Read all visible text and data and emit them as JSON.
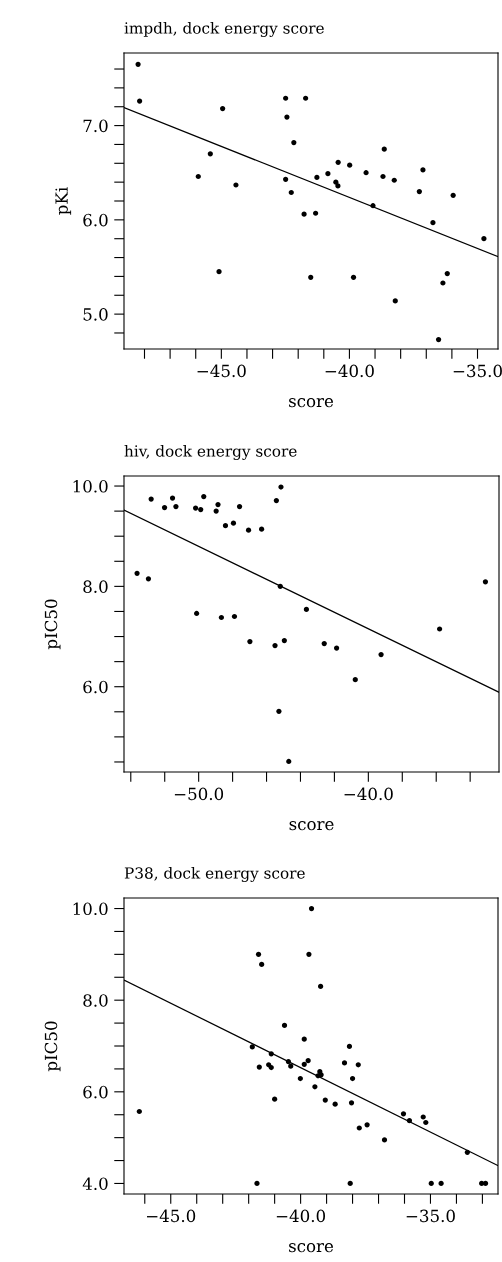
{
  "chart_data": [
    {
      "type": "scatter",
      "title": "impdh, dock energy score",
      "xlabel": "score",
      "ylabel": "pKi",
      "grid": false,
      "legend": false,
      "xlim": [
        -48.8,
        -34.2
      ],
      "ylim": [
        4.63,
        7.77
      ],
      "xticks": [
        {
          "value": -48,
          "label": null
        },
        {
          "value": -47,
          "label": null
        },
        {
          "value": -46,
          "label": null
        },
        {
          "value": -45,
          "label": "−45.0"
        },
        {
          "value": -44,
          "label": null
        },
        {
          "value": -43,
          "label": null
        },
        {
          "value": -42,
          "label": null
        },
        {
          "value": -41,
          "label": null
        },
        {
          "value": -40,
          "label": "−40.0"
        },
        {
          "value": -39,
          "label": null
        },
        {
          "value": -38,
          "label": null
        },
        {
          "value": -37,
          "label": null
        },
        {
          "value": -36,
          "label": null
        },
        {
          "value": -35,
          "label": "−35.0"
        }
      ],
      "yticks": [
        {
          "value": 4.8,
          "label": null
        },
        {
          "value": 5.0,
          "label": "5.0"
        },
        {
          "value": 5.2,
          "label": null
        },
        {
          "value": 5.4,
          "label": null
        },
        {
          "value": 5.6,
          "label": null
        },
        {
          "value": 5.8,
          "label": null
        },
        {
          "value": 6.0,
          "label": "6.0"
        },
        {
          "value": 6.2,
          "label": null
        },
        {
          "value": 6.4,
          "label": null
        },
        {
          "value": 6.6,
          "label": null
        },
        {
          "value": 6.8,
          "label": null
        },
        {
          "value": 7.0,
          "label": "7.0"
        },
        {
          "value": 7.2,
          "label": null
        },
        {
          "value": 7.4,
          "label": null
        },
        {
          "value": 7.6,
          "label": null
        }
      ],
      "series": [
        {
          "marker": "circle",
          "color": "#000000",
          "x": [
            -48.25,
            -48.19,
            -44.95,
            -45.43,
            -45.9,
            -44.43,
            -45.09,
            -42.49,
            -42.44,
            -42.17,
            -42.49,
            -42.27,
            -41.71,
            -41.77,
            -41.32,
            -41.27,
            -41.51,
            -40.84,
            -40.44,
            -40.53,
            -40.45,
            -39.99,
            -39.84,
            -39.35,
            -39.08,
            -38.64,
            -38.69,
            -38.25,
            -38.21,
            -37.27,
            -37.13,
            -36.74,
            -35.95,
            -36.52,
            -36.35,
            -36.18,
            -34.75
          ],
          "values": [
            7.65,
            7.26,
            7.18,
            6.7,
            6.46,
            6.37,
            5.45,
            7.29,
            7.09,
            6.82,
            6.43,
            6.29,
            7.29,
            6.06,
            6.07,
            6.45,
            5.39,
            6.49,
            6.61,
            6.4,
            6.36,
            6.58,
            5.39,
            6.5,
            6.15,
            6.75,
            6.46,
            6.42,
            5.14,
            6.3,
            6.53,
            5.97,
            6.26,
            4.73,
            5.33,
            5.43,
            5.8
          ]
        },
        {
          "type": "line",
          "color": "#000000",
          "line_style": "solid",
          "x": [
            -48.8,
            -34.2
          ],
          "values": [
            7.19,
            5.61
          ]
        }
      ]
    },
    {
      "type": "scatter",
      "title": "hiv, dock energy score",
      "xlabel": "score",
      "ylabel": "pIC50",
      "grid": false,
      "legend": false,
      "xlim": [
        -54.4,
        -32.3
      ],
      "ylim": [
        4.3,
        10.2
      ],
      "xticks": [
        {
          "value": -54,
          "label": null
        },
        {
          "value": -52,
          "label": null
        },
        {
          "value": -50,
          "label": "−50.0"
        },
        {
          "value": -48,
          "label": null
        },
        {
          "value": -46,
          "label": null
        },
        {
          "value": -44,
          "label": null
        },
        {
          "value": -42,
          "label": null
        },
        {
          "value": -40,
          "label": "−40.0"
        },
        {
          "value": -38,
          "label": null
        },
        {
          "value": -36,
          "label": null
        },
        {
          "value": -34,
          "label": null
        }
      ],
      "yticks": [
        {
          "value": 4.5,
          "label": null
        },
        {
          "value": 5.0,
          "label": null
        },
        {
          "value": 5.5,
          "label": null
        },
        {
          "value": 6.0,
          "label": "6.0"
        },
        {
          "value": 6.5,
          "label": null
        },
        {
          "value": 7.0,
          "label": null
        },
        {
          "value": 7.5,
          "label": null
        },
        {
          "value": 8.0,
          "label": "8.0"
        },
        {
          "value": 8.5,
          "label": null
        },
        {
          "value": 9.0,
          "label": null
        },
        {
          "value": 9.5,
          "label": null
        },
        {
          "value": 10.0,
          "label": "10.0"
        }
      ],
      "series": [
        {
          "marker": "circle",
          "color": "#000000",
          "x": [
            -53.63,
            -52.96,
            -52.8,
            -52.01,
            -51.54,
            -51.34,
            -50.18,
            -49.88,
            -49.7,
            -48.97,
            -48.86,
            -48.42,
            -47.95,
            -47.59,
            -47.06,
            -46.29,
            -45.42,
            -45.15,
            -50.12,
            -48.66,
            -47.89,
            -46.98,
            -45.5,
            -44.95,
            -45.19,
            -45.27,
            -44.69,
            -43.65,
            -42.6,
            -41.87,
            -40.77,
            -39.25,
            -35.8,
            -33.1
          ],
          "values": [
            8.26,
            8.15,
            9.74,
            9.57,
            9.76,
            9.59,
            9.56,
            9.53,
            9.79,
            9.5,
            9.63,
            9.21,
            9.26,
            9.59,
            9.12,
            9.14,
            9.71,
            9.98,
            7.46,
            7.38,
            7.4,
            6.9,
            6.82,
            6.92,
            8.0,
            5.51,
            4.51,
            7.54,
            6.86,
            6.77,
            6.14,
            6.64,
            7.15,
            8.09
          ]
        },
        {
          "type": "line",
          "color": "#000000",
          "line_style": "solid",
          "x": [
            -54.4,
            -32.3
          ],
          "values": [
            9.52,
            5.89
          ]
        }
      ]
    },
    {
      "type": "scatter",
      "title": "P38, dock energy score",
      "xlabel": "score",
      "ylabel": "pIC50",
      "grid": false,
      "legend": false,
      "xlim": [
        -46.8,
        -32.4
      ],
      "ylim": [
        3.77,
        10.23
      ],
      "xticks": [
        {
          "value": -46,
          "label": null
        },
        {
          "value": -45,
          "label": "−45.0"
        },
        {
          "value": -44,
          "label": null
        },
        {
          "value": -43,
          "label": null
        },
        {
          "value": -42,
          "label": null
        },
        {
          "value": -41,
          "label": null
        },
        {
          "value": -40,
          "label": "−40.0"
        },
        {
          "value": -39,
          "label": null
        },
        {
          "value": -38,
          "label": null
        },
        {
          "value": -37,
          "label": null
        },
        {
          "value": -36,
          "label": null
        },
        {
          "value": -35,
          "label": "−35.0"
        },
        {
          "value": -34,
          "label": null
        },
        {
          "value": -33,
          "label": null
        }
      ],
      "yticks": [
        {
          "value": 4.0,
          "label": "4.0"
        },
        {
          "value": 4.5,
          "label": null
        },
        {
          "value": 5.0,
          "label": null
        },
        {
          "value": 5.5,
          "label": null
        },
        {
          "value": 6.0,
          "label": "6.0"
        },
        {
          "value": 6.5,
          "label": null
        },
        {
          "value": 7.0,
          "label": null
        },
        {
          "value": 7.5,
          "label": null
        },
        {
          "value": 8.0,
          "label": "8.0"
        },
        {
          "value": 8.5,
          "label": null
        },
        {
          "value": 9.0,
          "label": null
        },
        {
          "value": 9.5,
          "label": null
        },
        {
          "value": 10.0,
          "label": "10.0"
        }
      ],
      "series": [
        {
          "marker": "circle",
          "color": "#000000",
          "x": [
            -46.21,
            -41.68,
            -41.62,
            -41.5,
            -41.86,
            -41.59,
            -41.23,
            -41.13,
            -41.13,
            -41.0,
            -40.62,
            -40.47,
            -40.38,
            -40.01,
            -39.86,
            -39.86,
            -39.71,
            -39.58,
            -39.68,
            -39.23,
            -39.45,
            -39.33,
            -39.26,
            -39.21,
            -39.05,
            -38.67,
            -38.31,
            -38.12,
            -38.09,
            -38.04,
            -38.0,
            -37.78,
            -37.74,
            -37.44,
            -36.77,
            -36.04,
            -35.81,
            -35.28,
            -35.18,
            -34.97,
            -34.59,
            -33.58,
            -33.03,
            -32.88
          ],
          "values": [
            5.57,
            4.0,
            9.0,
            8.78,
            6.98,
            6.54,
            6.59,
            6.83,
            6.53,
            5.84,
            7.45,
            6.66,
            6.56,
            6.29,
            7.15,
            6.6,
            6.68,
            10.0,
            9.0,
            8.3,
            6.11,
            6.35,
            6.44,
            6.37,
            5.82,
            5.73,
            6.63,
            6.99,
            4.0,
            5.76,
            6.29,
            6.59,
            5.21,
            5.28,
            4.95,
            5.52,
            5.37,
            5.45,
            5.33,
            4.0,
            4.0,
            4.68,
            4.0,
            4.0
          ]
        },
        {
          "type": "line",
          "color": "#000000",
          "line_style": "solid",
          "x": [
            -46.8,
            -32.4
          ],
          "values": [
            8.44,
            4.39
          ]
        }
      ]
    }
  ]
}
